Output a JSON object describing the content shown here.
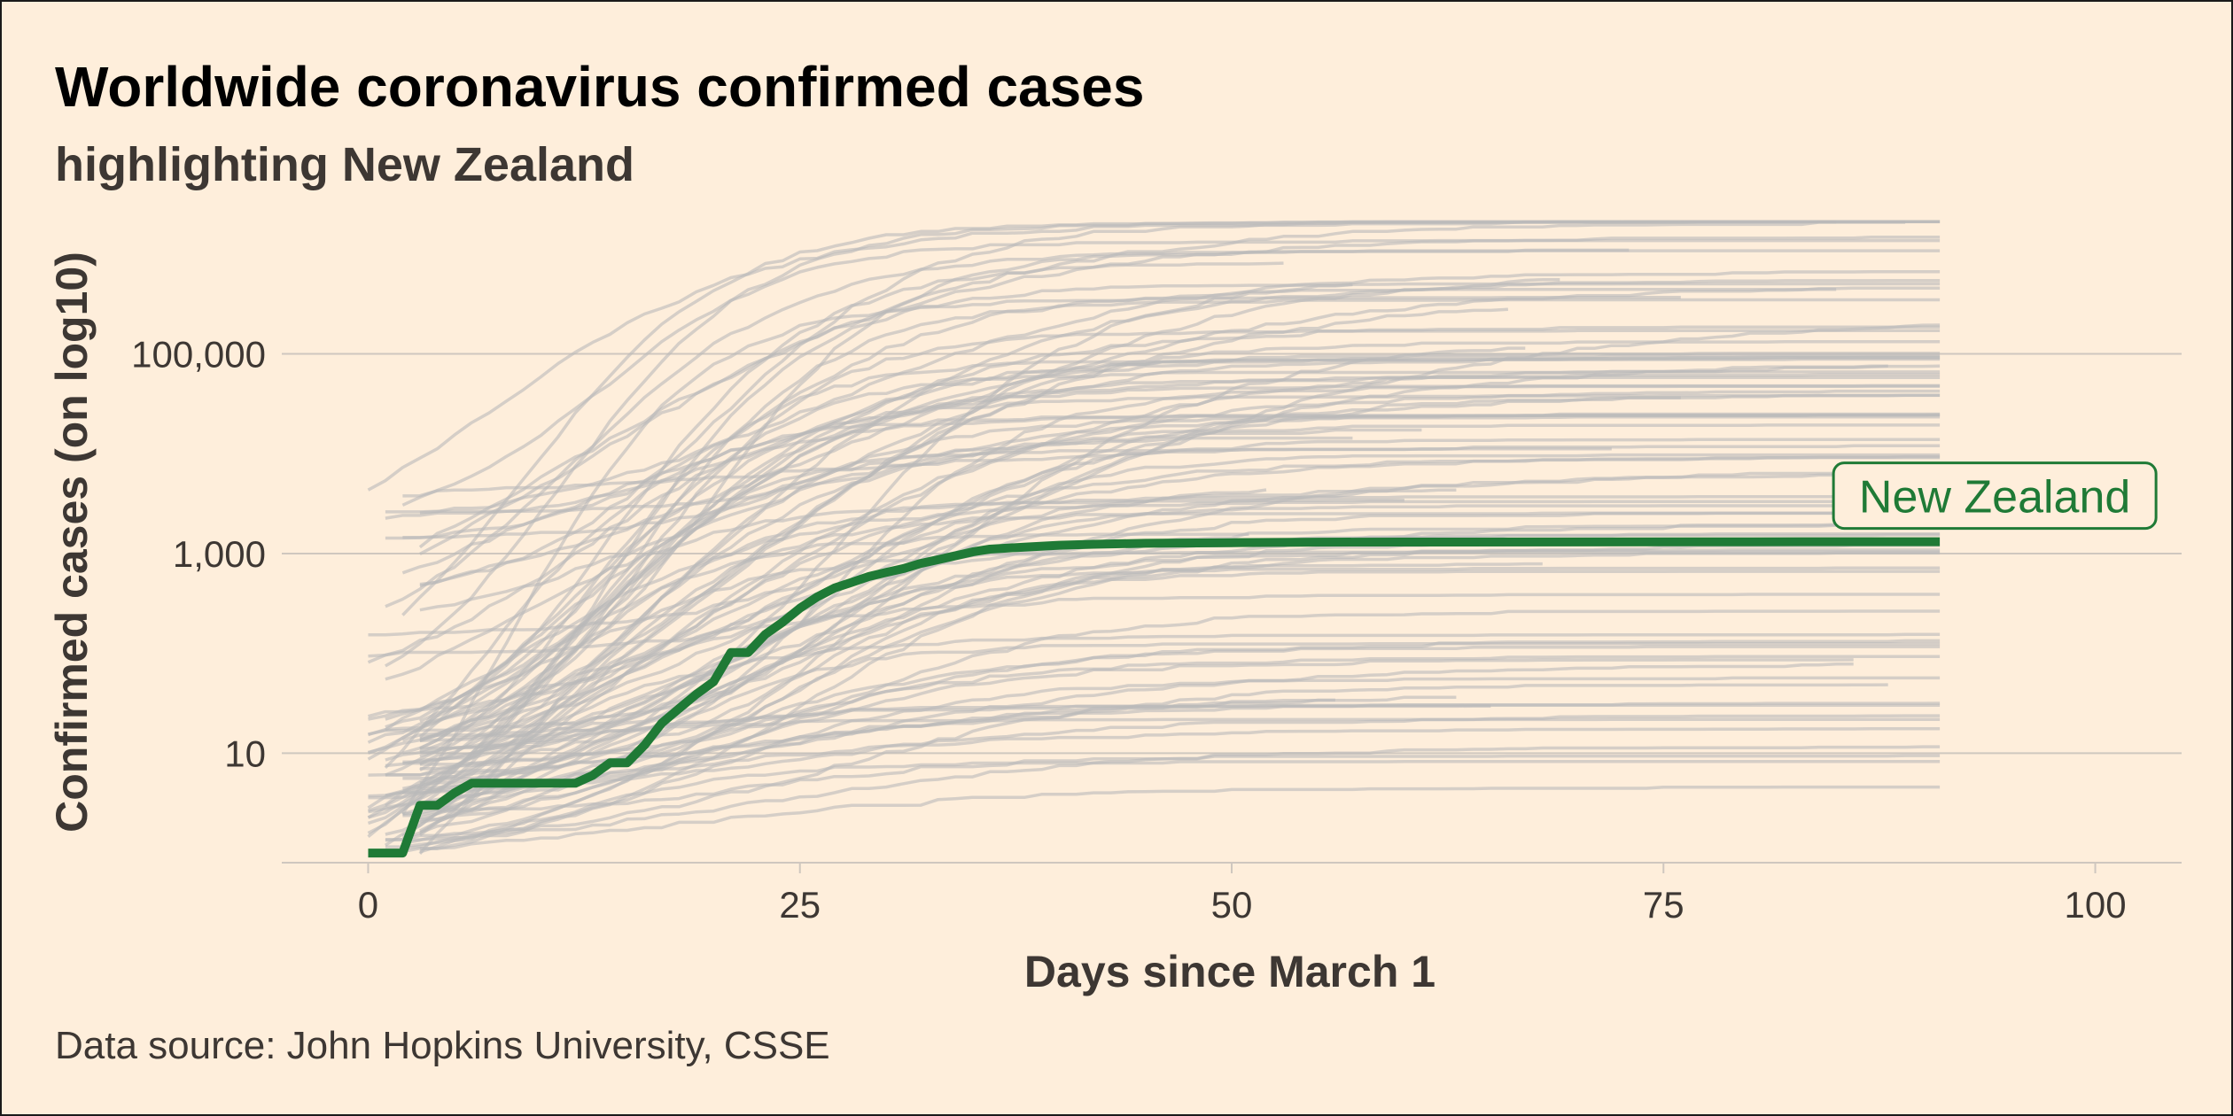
{
  "chart_data": {
    "type": "line",
    "title": "Worldwide coronavirus confirmed cases",
    "subtitle": "highlighting New Zealand",
    "xlabel": "Days since March 1",
    "ylabel": "Confirmed cases (on log10)",
    "caption": "Data source: John Hopkins University, CSSE",
    "y_scale": "log10",
    "xlim": [
      -5,
      105
    ],
    "ylim": [
      0.8,
      2500000
    ],
    "x_ticks": [
      0,
      25,
      50,
      75,
      100
    ],
    "x_tick_labels": [
      "0",
      "25",
      "50",
      "75",
      "100"
    ],
    "y_ticks": [
      10,
      1000,
      100000
    ],
    "y_tick_labels": [
      "10",
      "1,000",
      "100,000"
    ],
    "grid": "horizontal major only",
    "colors": {
      "background": "#feeedb",
      "highlight": "#1f7a36",
      "other_countries": "#b9b9b9",
      "gridline": "#cfc7bf"
    },
    "highlight": {
      "name": "New Zealand",
      "x": [
        0,
        1,
        2,
        3,
        4,
        5,
        6,
        7,
        8,
        9,
        10,
        11,
        12,
        13,
        14,
        15,
        16,
        17,
        18,
        19,
        20,
        21,
        22,
        23,
        24,
        25,
        26,
        27,
        28,
        29,
        30,
        31,
        32,
        33,
        34,
        35,
        36,
        38,
        40,
        42,
        45,
        50,
        55,
        60,
        70,
        80,
        91
      ],
      "y": [
        1,
        1,
        1,
        3,
        3,
        4,
        5,
        5,
        5,
        5,
        5,
        5,
        5,
        6,
        8,
        8,
        12,
        20,
        28,
        39,
        52,
        102,
        102,
        155,
        205,
        283,
        368,
        451,
        514,
        589,
        647,
        708,
        797,
        868,
        950,
        1039,
        1106,
        1160,
        1210,
        1239,
        1266,
        1286,
        1300,
        1304,
        1307,
        1310,
        1313
      ]
    },
    "background_series": {
      "count": 100,
      "x_range": [
        0,
        91
      ],
      "y_range": [
        1,
        2000000
      ],
      "style": "thin grey lines, one per country"
    }
  }
}
